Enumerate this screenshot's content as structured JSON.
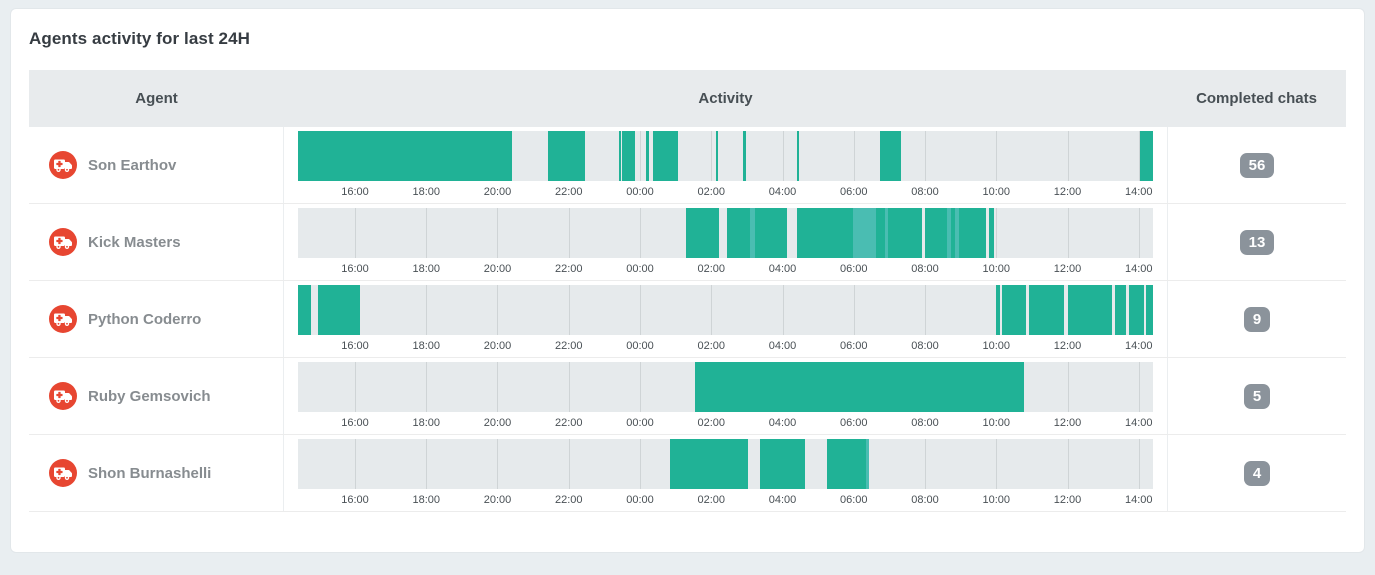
{
  "page": {
    "title": "Agents activity for last 24H"
  },
  "table": {
    "columns": [
      "Agent",
      "Activity",
      "Completed chats"
    ],
    "timeline": {
      "start_hour": 14.4,
      "end_hour": 38.4,
      "ticks": [
        {
          "hour": 16,
          "label": "16:00"
        },
        {
          "hour": 18,
          "label": "18:00"
        },
        {
          "hour": 20,
          "label": "20:00"
        },
        {
          "hour": 22,
          "label": "22:00"
        },
        {
          "hour": 24,
          "label": "00:00"
        },
        {
          "hour": 26,
          "label": "02:00"
        },
        {
          "hour": 28,
          "label": "04:00"
        },
        {
          "hour": 30,
          "label": "06:00"
        },
        {
          "hour": 32,
          "label": "08:00"
        },
        {
          "hour": 34,
          "label": "10:00"
        },
        {
          "hour": 36,
          "label": "12:00"
        },
        {
          "hour": 38,
          "label": "14:00"
        }
      ]
    },
    "rows": [
      {
        "agent": "Son Earthov",
        "avatar_icon": "ambulance-icon",
        "completed": "56",
        "segments": [
          {
            "start": 14.4,
            "end": 20.42,
            "type": "solid"
          },
          {
            "start": 21.42,
            "end": 22.45,
            "type": "solid"
          },
          {
            "start": 23.4,
            "end": 23.47,
            "type": "solid"
          },
          {
            "start": 23.5,
            "end": 23.85,
            "type": "solid"
          },
          {
            "start": 24.18,
            "end": 24.25,
            "type": "solid"
          },
          {
            "start": 24.37,
            "end": 25.08,
            "type": "solid"
          },
          {
            "start": 26.13,
            "end": 26.2,
            "type": "solid"
          },
          {
            "start": 26.9,
            "end": 26.97,
            "type": "solid"
          },
          {
            "start": 28.4,
            "end": 28.47,
            "type": "solid"
          },
          {
            "start": 30.75,
            "end": 31.33,
            "type": "solid"
          },
          {
            "start": 38.03,
            "end": 38.4,
            "type": "solid"
          }
        ]
      },
      {
        "agent": "Kick Masters",
        "avatar_icon": "ambulance-icon",
        "completed": "13",
        "segments": [
          {
            "start": 25.28,
            "end": 26.23,
            "type": "solid"
          },
          {
            "start": 26.45,
            "end": 27.08,
            "type": "solid"
          },
          {
            "start": 27.08,
            "end": 27.22,
            "type": "light"
          },
          {
            "start": 27.22,
            "end": 28.12,
            "type": "solid"
          },
          {
            "start": 28.4,
            "end": 29.98,
            "type": "solid"
          },
          {
            "start": 29.98,
            "end": 30.63,
            "type": "light"
          },
          {
            "start": 30.63,
            "end": 30.88,
            "type": "solid"
          },
          {
            "start": 30.88,
            "end": 30.97,
            "type": "light"
          },
          {
            "start": 30.97,
            "end": 31.92,
            "type": "solid"
          },
          {
            "start": 32.0,
            "end": 32.63,
            "type": "solid"
          },
          {
            "start": 32.63,
            "end": 32.73,
            "type": "light"
          },
          {
            "start": 32.73,
            "end": 32.85,
            "type": "solid"
          },
          {
            "start": 32.85,
            "end": 32.96,
            "type": "light"
          },
          {
            "start": 32.96,
            "end": 33.72,
            "type": "solid"
          },
          {
            "start": 33.8,
            "end": 33.93,
            "type": "solid"
          }
        ]
      },
      {
        "agent": "Python Coderro",
        "avatar_icon": "ambulance-icon",
        "completed": "9",
        "segments": [
          {
            "start": 14.4,
            "end": 14.76,
            "type": "solid"
          },
          {
            "start": 14.95,
            "end": 16.13,
            "type": "solid"
          },
          {
            "start": 34.0,
            "end": 34.1,
            "type": "solid"
          },
          {
            "start": 34.15,
            "end": 34.84,
            "type": "solid"
          },
          {
            "start": 34.92,
            "end": 35.9,
            "type": "solid"
          },
          {
            "start": 36.0,
            "end": 37.26,
            "type": "solid"
          },
          {
            "start": 37.32,
            "end": 37.63,
            "type": "solid"
          },
          {
            "start": 37.74,
            "end": 38.16,
            "type": "solid"
          },
          {
            "start": 38.21,
            "end": 38.4,
            "type": "solid"
          }
        ]
      },
      {
        "agent": "Ruby Gemsovich",
        "avatar_icon": "ambulance-icon",
        "completed": "5",
        "segments": [
          {
            "start": 25.55,
            "end": 34.78,
            "type": "solid"
          }
        ]
      },
      {
        "agent": "Shon Burnashelli",
        "avatar_icon": "ambulance-icon",
        "completed": "4",
        "segments": [
          {
            "start": 24.84,
            "end": 27.02,
            "type": "solid"
          },
          {
            "start": 27.37,
            "end": 28.63,
            "type": "solid"
          },
          {
            "start": 29.25,
            "end": 30.35,
            "type": "solid"
          },
          {
            "start": 30.35,
            "end": 30.43,
            "type": "light"
          }
        ]
      }
    ]
  },
  "colors": {
    "activity_solid": "#20b296",
    "activity_light": "#4abdb2",
    "timeline_bg": "#e6eaec",
    "gridline": "#cfd4d6",
    "badge_bg": "#8b939b",
    "avatar_red": "#e74631",
    "header_bg": "#e8ebed",
    "page_bg": "#e9eef1"
  }
}
